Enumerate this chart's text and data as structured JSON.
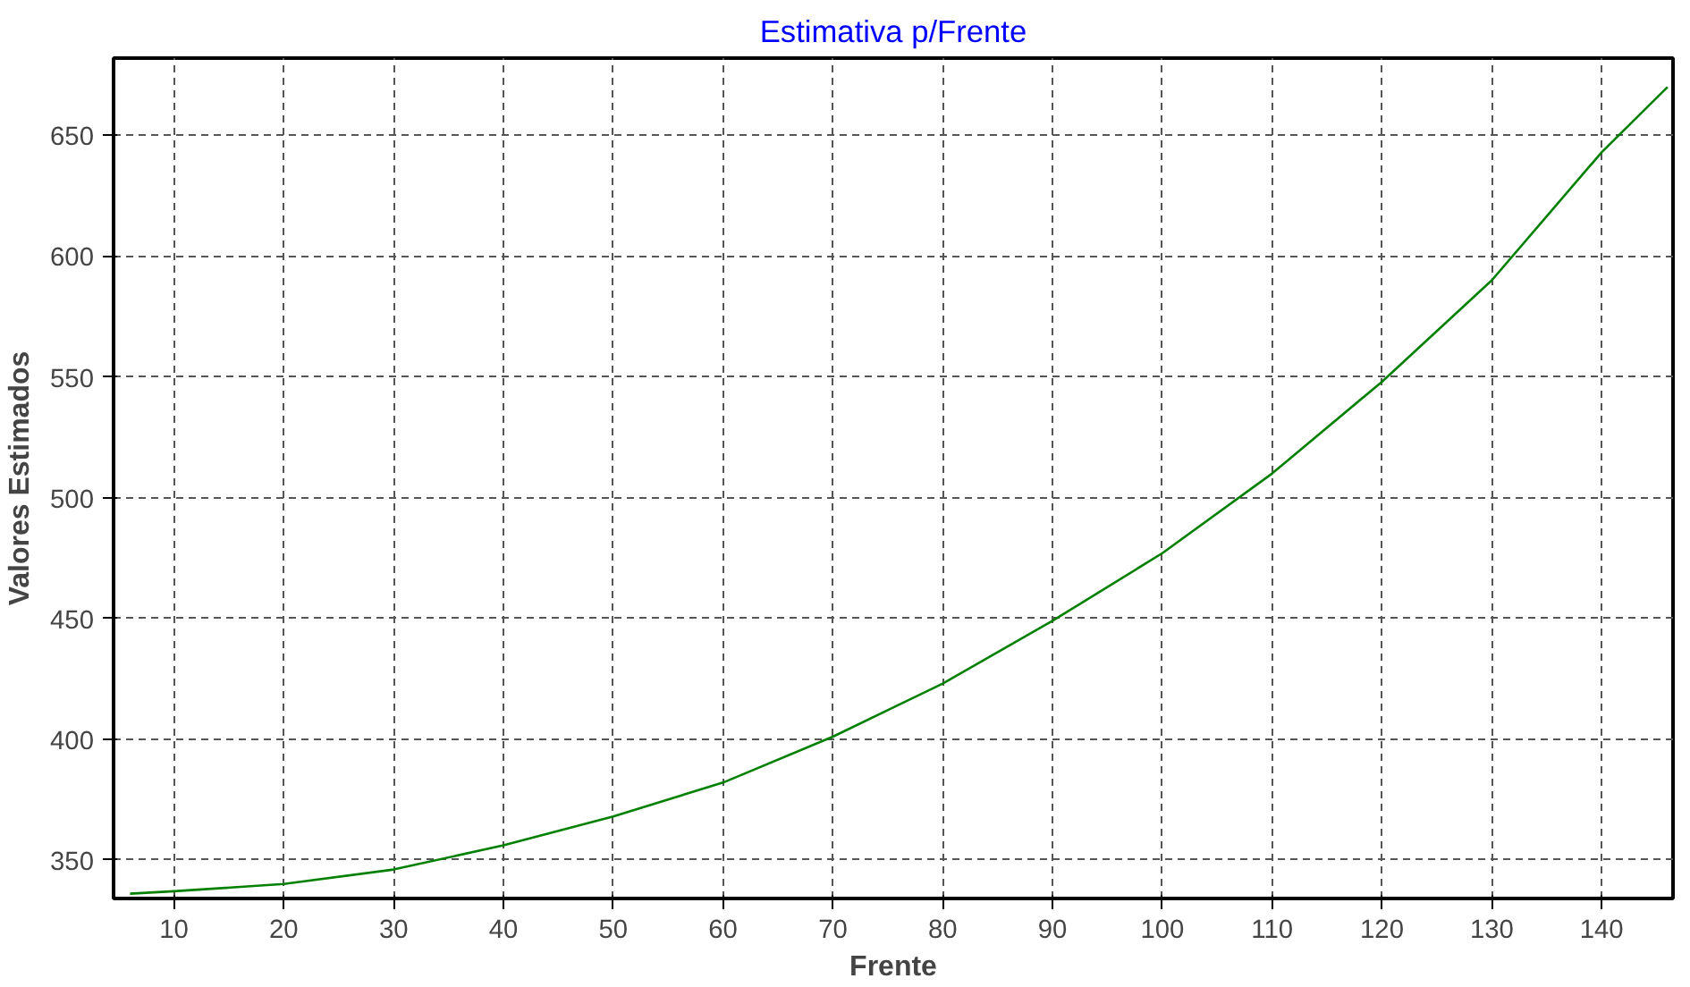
{
  "chart_data": {
    "type": "line",
    "title": "Estimativa p/Frente",
    "xlabel": "Frente",
    "ylabel": "Valores Estimados",
    "x": [
      6,
      10,
      20,
      30,
      40,
      50,
      60,
      70,
      80,
      90,
      100,
      110,
      120,
      130,
      140,
      146
    ],
    "series": [
      {
        "color": "#008000",
        "values": [
          336,
          337,
          340,
          346,
          356,
          368,
          382,
          401,
          423,
          449,
          477,
          510,
          548,
          590,
          643,
          670
        ]
      }
    ],
    "xlim": [
      4.5,
      146.5
    ],
    "ylim": [
      334,
      682
    ],
    "xticks": [
      10,
      20,
      30,
      40,
      50,
      60,
      70,
      80,
      90,
      100,
      110,
      120,
      130,
      140
    ],
    "yticks": [
      350,
      400,
      450,
      500,
      550,
      600,
      650
    ],
    "grid": true,
    "marker": "none",
    "line_style": "solid"
  }
}
